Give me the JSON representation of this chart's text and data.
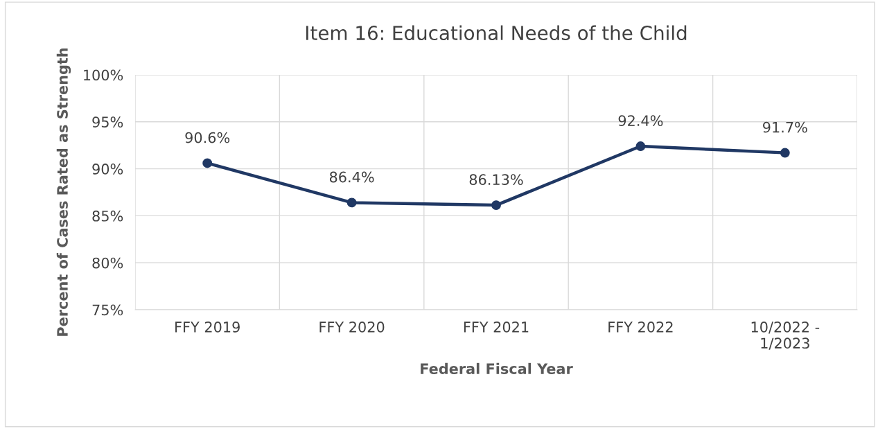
{
  "chart_data": {
    "type": "line",
    "title": "Item 16: Educational Needs of the Child",
    "xlabel": "Federal Fiscal Year",
    "ylabel": "Percent of Cases Rated as Strength",
    "categories": [
      "FFY 2019",
      "FFY 2020",
      "FFY 2021",
      "FFY 2022",
      "10/2022 -\n1/2023"
    ],
    "series": [
      {
        "color": "#203864",
        "values": [
          90.6,
          86.4,
          86.13,
          92.4,
          91.7
        ],
        "value_labels": [
          "90.6%",
          "86.4%",
          "86.13%",
          "92.4%",
          "91.7%"
        ]
      }
    ],
    "ylim": [
      75,
      100
    ],
    "yticks": [
      {
        "value": 75,
        "label": "75%"
      },
      {
        "value": 80,
        "label": "80%"
      },
      {
        "value": 85,
        "label": "85%"
      },
      {
        "value": 90,
        "label": "90%"
      },
      {
        "value": 95,
        "label": "95%"
      },
      {
        "value": 100,
        "label": "100%"
      }
    ],
    "grid": true,
    "marker": "circle",
    "line_style": "solid"
  }
}
